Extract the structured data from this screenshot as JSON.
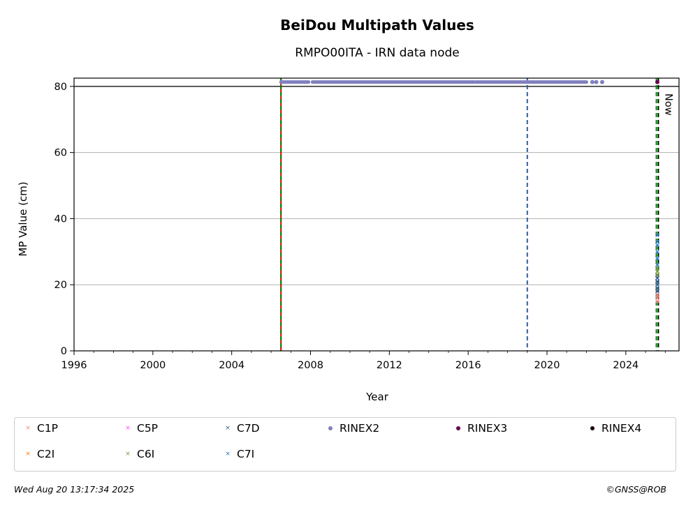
{
  "chart_data": {
    "type": "scatter",
    "title": "BeiDou Multipath Values",
    "subtitle": "RMPO00ITA - IRN data node",
    "xlabel": "Year",
    "ylabel": "MP Value (cm)",
    "xlim": [
      1996,
      2026.7
    ],
    "ylim": [
      0,
      82.5
    ],
    "xticks": [
      1996,
      2000,
      2004,
      2008,
      2012,
      2016,
      2020,
      2024
    ],
    "yticks": [
      0,
      20,
      40,
      60,
      80
    ],
    "grid": "horizontal",
    "threshold_line": 80,
    "vertical_lines": [
      {
        "x": 2006.5,
        "style": "solid-red-green-dashed",
        "color": "#008000"
      },
      {
        "x": 2019.0,
        "style": "dashed",
        "color": "#1f5fbf"
      },
      {
        "x": 2025.55,
        "style": "dashed",
        "color": "#008000"
      },
      {
        "x": 2025.65,
        "style": "dashed",
        "color": "#000000",
        "label": "Now"
      }
    ],
    "series": [
      {
        "name": "C1P",
        "color": "#f08080",
        "marker": "x",
        "points": [
          [
            2025.6,
            15
          ],
          [
            2025.6,
            16
          ],
          [
            2025.6,
            17
          ],
          [
            2025.6,
            18
          ],
          [
            2025.6,
            19
          ]
        ]
      },
      {
        "name": "C2I",
        "color": "#ff7f0e",
        "marker": "x",
        "points": [
          [
            2025.6,
            23
          ],
          [
            2025.6,
            24
          ]
        ]
      },
      {
        "name": "C5P",
        "color": "#ff40ff",
        "marker": "x",
        "points": [
          [
            2025.6,
            21
          ],
          [
            2025.6,
            22
          ],
          [
            2025.6,
            23
          ]
        ]
      },
      {
        "name": "C6I",
        "color": "#6a9a4a",
        "marker": "x",
        "points": [
          [
            2025.6,
            23
          ],
          [
            2025.6,
            24
          ],
          [
            2025.6,
            25
          ],
          [
            2025.6,
            26
          ]
        ]
      },
      {
        "name": "C7D",
        "color": "#2b5c8a",
        "marker": "x",
        "points": [
          [
            2025.6,
            18
          ],
          [
            2025.6,
            19
          ],
          [
            2025.6,
            20
          ],
          [
            2025.6,
            21
          ],
          [
            2025.6,
            22
          ],
          [
            2025.6,
            28
          ]
        ]
      },
      {
        "name": "C7I",
        "color": "#2e75b6",
        "marker": "x",
        "points": [
          [
            2025.6,
            26
          ],
          [
            2025.6,
            28
          ],
          [
            2025.6,
            30
          ],
          [
            2025.6,
            32
          ],
          [
            2025.6,
            33
          ],
          [
            2025.6,
            35
          ]
        ]
      },
      {
        "name": "RINEX2",
        "color": "#8080c0",
        "marker": "o",
        "segments": [
          [
            2006.5,
            2007.9
          ],
          [
            2008.1,
            2016.3
          ],
          [
            2016.4,
            2022.0
          ]
        ],
        "points": [
          [
            2022.3,
            81.3
          ],
          [
            2022.5,
            81.3
          ],
          [
            2022.8,
            81.3
          ]
        ],
        "y": 81.3
      },
      {
        "name": "RINEX3",
        "color": "#6a0050",
        "marker": "o",
        "points": [
          [
            2025.6,
            81.3
          ]
        ]
      },
      {
        "name": "RINEX4",
        "color": "#1a0010",
        "marker": "o",
        "points": []
      }
    ]
  },
  "legend": {
    "items": [
      {
        "label": "C1P",
        "color": "#f08080",
        "marker": "×"
      },
      {
        "label": "C5P",
        "color": "#ff40ff",
        "marker": "×"
      },
      {
        "label": "C7D",
        "color": "#2b5c8a",
        "marker": "×"
      },
      {
        "label": "RINEX2",
        "color": "#8080c0",
        "marker": "dot"
      },
      {
        "label": "RINEX3",
        "color": "#6a0050",
        "marker": "dot"
      },
      {
        "label": "RINEX4",
        "color": "#1a0010",
        "marker": "dot"
      },
      {
        "label": "C2I",
        "color": "#ff7f0e",
        "marker": "×"
      },
      {
        "label": "C6I",
        "color": "#6a9a4a",
        "marker": "×"
      },
      {
        "label": "C7I",
        "color": "#2e75b6",
        "marker": "×"
      }
    ]
  },
  "footer": {
    "timestamp": "Wed Aug 20 13:17:34 2025",
    "copyright": "©GNSS@ROB"
  }
}
